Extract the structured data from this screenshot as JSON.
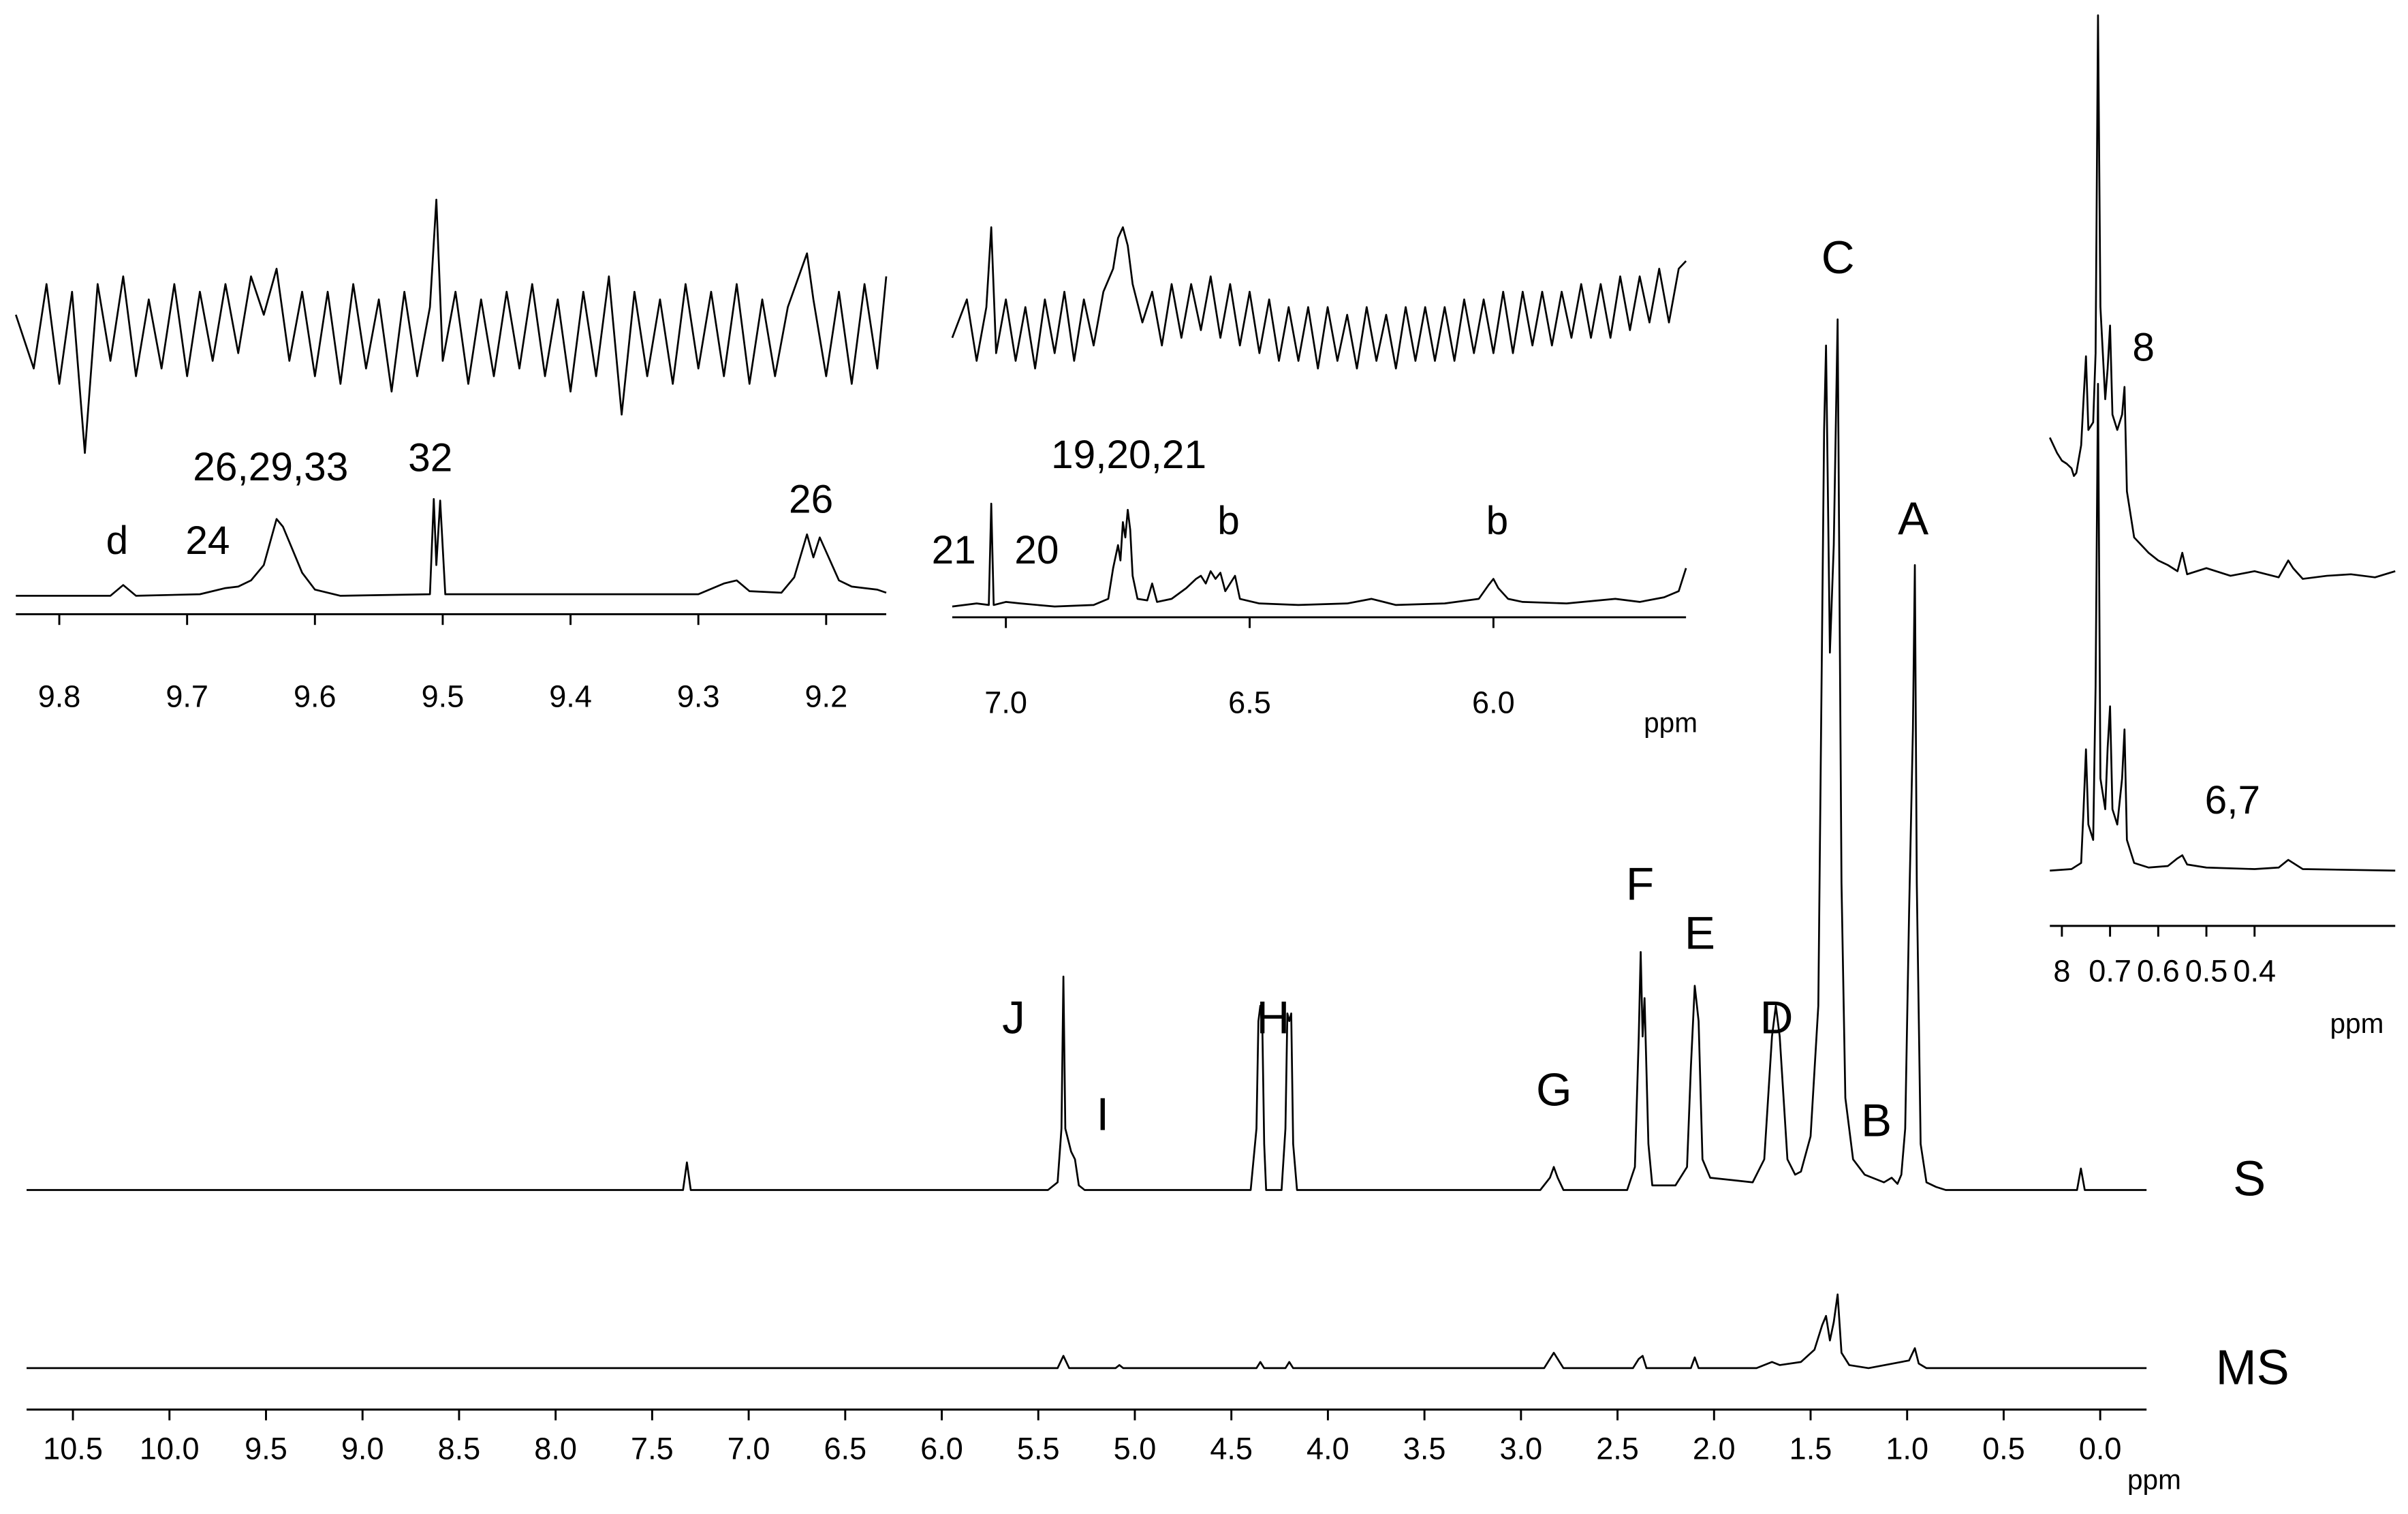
{
  "chart_data": [
    {
      "type": "line",
      "xlabel": "ppm",
      "xlim": [
        10.74,
        -0.24
      ],
      "xticks": [
        10.5,
        {
          "value": 10,
          "label": "10.0"
        },
        9.5,
        {
          "value": 9,
          "label": "9.0"
        },
        8.5,
        {
          "value": 8,
          "label": "8.0"
        },
        7.5,
        {
          "value": 7,
          "label": "7.0"
        },
        6.5,
        {
          "value": 6,
          "label": "6.0"
        },
        5.5,
        {
          "value": 5,
          "label": "5.0"
        },
        4.5,
        {
          "value": 4,
          "label": "4.0"
        },
        3.5,
        {
          "value": 3,
          "label": "3.0"
        },
        2.5,
        {
          "value": 2,
          "label": "2.0"
        },
        1.5,
        {
          "value": 1,
          "label": "1.0"
        },
        0.5,
        {
          "value": 0,
          "label": "0.0"
        }
      ],
      "annotations": [
        "J",
        "I",
        "H",
        "G",
        "F",
        "E",
        "D",
        "C",
        "B",
        "A"
      ],
      "series": [
        {
          "name": "S",
          "color": "#000000",
          "x": [
            10.74,
            7.34,
            7.32,
            7.3,
            5.45,
            5.4,
            5.38,
            5.37,
            5.36,
            5.33,
            5.31,
            5.29,
            5.26,
            4.4,
            4.37,
            4.36,
            4.35,
            4.34,
            4.33,
            4.32,
            4.24,
            4.22,
            4.21,
            4.2,
            4.19,
            4.18,
            4.16,
            2.9,
            2.85,
            2.83,
            2.81,
            2.78,
            2.45,
            2.41,
            2.39,
            2.38,
            2.37,
            2.36,
            2.34,
            2.32,
            2.2,
            2.14,
            2.12,
            2.1,
            2.08,
            2.06,
            2.02,
            1.8,
            1.74,
            1.7,
            1.68,
            1.66,
            1.62,
            1.58,
            1.55,
            1.5,
            1.46,
            1.43,
            1.42,
            1.4,
            1.38,
            1.36,
            1.34,
            1.32,
            1.28,
            1.22,
            1.12,
            1.08,
            1.05,
            1.03,
            1.01,
            0.99,
            0.97,
            0.96,
            0.95,
            0.93,
            0.9,
            0.85,
            0.8,
            0.12,
            0.1,
            0.08,
            -0.24
          ],
          "values": [
            0,
            0,
            18,
            0,
            0,
            5,
            40,
            139,
            40,
            25,
            20,
            3,
            0,
            0,
            40,
            110,
            120,
            110,
            30,
            0,
            0,
            40,
            115,
            110,
            115,
            30,
            0,
            0,
            8,
            15,
            8,
            0,
            0,
            15,
            100,
            155,
            100,
            125,
            30,
            3,
            3,
            15,
            80,
            133,
            110,
            20,
            8,
            5,
            20,
            100,
            120,
            100,
            20,
            10,
            12,
            35,
            120,
            495,
            550,
            350,
            420,
            567,
            200,
            60,
            20,
            10,
            5,
            8,
            4,
            10,
            40,
            180,
            300,
            407,
            200,
            30,
            5,
            2,
            0,
            0,
            14,
            0,
            0
          ]
        },
        {
          "name": "MS",
          "color": "#000000",
          "x": [
            10.74,
            7.32,
            5.4,
            5.37,
            5.34,
            5.1,
            5.08,
            5.06,
            4.37,
            4.35,
            4.33,
            4.22,
            4.2,
            4.18,
            2.88,
            2.85,
            2.83,
            2.81,
            2.78,
            2.42,
            2.39,
            2.37,
            2.35,
            2.12,
            2.1,
            2.08,
            1.78,
            1.7,
            1.66,
            1.55,
            1.48,
            1.44,
            1.42,
            1.4,
            1.38,
            1.36,
            1.34,
            1.3,
            1.2,
            0.99,
            0.96,
            0.94,
            0.9,
            -0.24
          ],
          "values": [
            0,
            0,
            0,
            8,
            0,
            0,
            2,
            0,
            0,
            4,
            0,
            0,
            4,
            0,
            0,
            6,
            10,
            6,
            0,
            0,
            6,
            8,
            0,
            0,
            7,
            0,
            0,
            4,
            2,
            4,
            12,
            28,
            34,
            18,
            30,
            48,
            10,
            2,
            0,
            5,
            13,
            3,
            0,
            0
          ]
        }
      ]
    },
    {
      "type": "line",
      "xlim": [
        9.834,
        9.153
      ],
      "xticks": [
        9.8,
        9.7,
        9.6,
        9.5,
        9.4,
        9.3,
        9.2
      ],
      "annotations": [
        "d",
        "24",
        "26,29,33",
        "32",
        "26"
      ],
      "series": [
        {
          "color": "#000000",
          "x": [
            9.834,
            9.82,
            9.81,
            9.8,
            9.79,
            9.78,
            9.77,
            9.76,
            9.75,
            9.74,
            9.73,
            9.72,
            9.71,
            9.7,
            9.69,
            9.68,
            9.67,
            9.66,
            9.65,
            9.64,
            9.63,
            9.62,
            9.61,
            9.6,
            9.59,
            9.58,
            9.57,
            9.56,
            9.55,
            9.54,
            9.53,
            9.52,
            9.51,
            9.505,
            9.5,
            9.49,
            9.48,
            9.47,
            9.46,
            9.45,
            9.44,
            9.43,
            9.42,
            9.41,
            9.4,
            9.39,
            9.38,
            9.37,
            9.36,
            9.35,
            9.34,
            9.33,
            9.32,
            9.31,
            9.3,
            9.29,
            9.28,
            9.27,
            9.26,
            9.25,
            9.24,
            9.23,
            9.215,
            9.21,
            9.2,
            9.19,
            9.18,
            9.17,
            9.16,
            9.153
          ],
          "values": [
            10,
            -25,
            30,
            -35,
            25,
            -80,
            30,
            -20,
            35,
            -30,
            20,
            -25,
            30,
            -30,
            25,
            -20,
            30,
            -15,
            35,
            10,
            40,
            -20,
            25,
            -30,
            25,
            -35,
            30,
            -25,
            20,
            -40,
            25,
            -30,
            15,
            85,
            -20,
            25,
            -35,
            20,
            -30,
            25,
            -25,
            30,
            -30,
            20,
            -40,
            25,
            -30,
            35,
            -55,
            25,
            -30,
            20,
            -35,
            30,
            -25,
            25,
            -30,
            30,
            -35,
            20,
            -30,
            15,
            50,
            20,
            -30,
            25,
            -35,
            30,
            -25,
            35
          ]
        },
        {
          "color": "#000000",
          "x": [
            9.834,
            9.76,
            9.75,
            9.74,
            9.69,
            9.67,
            9.66,
            9.65,
            9.64,
            9.635,
            9.63,
            9.625,
            9.62,
            9.61,
            9.6,
            9.58,
            9.51,
            9.507,
            9.505,
            9.502,
            9.498,
            9.3,
            9.28,
            9.27,
            9.26,
            9.235,
            9.225,
            9.215,
            9.21,
            9.205,
            9.19,
            9.18,
            9.16,
            9.153
          ],
          "values": [
            0,
            0,
            7,
            0,
            1,
            5,
            6,
            10,
            20,
            35,
            50,
            45,
            35,
            15,
            4,
            0,
            1,
            63,
            20,
            62,
            1,
            1,
            8,
            10,
            3,
            2,
            12,
            40,
            25,
            38,
            10,
            6,
            4,
            2
          ]
        }
      ]
    },
    {
      "type": "line",
      "xlabel": "ppm",
      "xlim": [
        7.11,
        5.605
      ],
      "xticks": [
        {
          "value": 7,
          "label": "7.0"
        },
        6.5,
        {
          "value": 6,
          "label": "6.0"
        }
      ],
      "annotations": [
        "19,20,21",
        "21",
        "20",
        "b",
        "b"
      ],
      "series": [
        {
          "color": "#000000",
          "x": [
            7.11,
            7.08,
            7.06,
            7.04,
            7.03,
            7.02,
            7.0,
            6.98,
            6.96,
            6.94,
            6.92,
            6.9,
            6.88,
            6.86,
            6.84,
            6.82,
            6.8,
            6.78,
            6.77,
            6.76,
            6.75,
            6.74,
            6.72,
            6.7,
            6.68,
            6.66,
            6.64,
            6.62,
            6.6,
            6.58,
            6.56,
            6.54,
            6.52,
            6.5,
            6.48,
            6.46,
            6.44,
            6.42,
            6.4,
            6.38,
            6.36,
            6.34,
            6.32,
            6.3,
            6.28,
            6.26,
            6.24,
            6.22,
            6.2,
            6.18,
            6.16,
            6.14,
            6.12,
            6.1,
            6.08,
            6.06,
            6.04,
            6.02,
            6.0,
            5.98,
            5.96,
            5.94,
            5.92,
            5.9,
            5.88,
            5.86,
            5.84,
            5.82,
            5.8,
            5.78,
            5.76,
            5.74,
            5.72,
            5.7,
            5.68,
            5.66,
            5.64,
            5.62,
            5.605
          ],
          "values": [
            -5,
            20,
            -20,
            15,
            67,
            -15,
            20,
            -20,
            15,
            -25,
            20,
            -15,
            25,
            -20,
            20,
            -10,
            25,
            40,
            60,
            67,
            55,
            30,
            5,
            25,
            -10,
            30,
            -5,
            30,
            0,
            35,
            -5,
            30,
            -10,
            25,
            -15,
            20,
            -20,
            15,
            -20,
            15,
            -25,
            15,
            -20,
            10,
            -25,
            15,
            -20,
            10,
            -25,
            15,
            -20,
            15,
            -20,
            15,
            -20,
            20,
            -15,
            20,
            -15,
            25,
            -15,
            25,
            -10,
            25,
            -10,
            25,
            -5,
            30,
            -5,
            30,
            -5,
            35,
            0,
            35,
            5,
            40,
            5,
            40,
            45
          ]
        },
        {
          "color": "#000000",
          "x": [
            7.11,
            7.06,
            7.035,
            7.03,
            7.025,
            7.0,
            6.97,
            6.9,
            6.82,
            6.79,
            6.78,
            6.77,
            6.765,
            6.76,
            6.755,
            6.75,
            6.745,
            6.74,
            6.73,
            6.71,
            6.7,
            6.69,
            6.66,
            6.63,
            6.61,
            6.6,
            6.59,
            6.58,
            6.57,
            6.56,
            6.55,
            6.53,
            6.52,
            6.48,
            6.4,
            6.3,
            6.25,
            6.2,
            6.1,
            6.03,
            6.01,
            6.0,
            5.99,
            5.97,
            5.94,
            5.85,
            5.75,
            5.7,
            5.65,
            5.62,
            5.605
          ],
          "values": [
            0,
            2,
            1,
            67,
            1,
            3,
            2,
            0,
            1,
            5,
            25,
            40,
            30,
            55,
            45,
            63,
            50,
            20,
            5,
            4,
            15,
            3,
            5,
            12,
            18,
            20,
            15,
            23,
            18,
            22,
            10,
            20,
            5,
            2,
            1,
            2,
            5,
            1,
            2,
            5,
            14,
            18,
            12,
            5,
            3,
            2,
            5,
            3,
            6,
            10,
            25
          ]
        }
      ]
    },
    {
      "type": "line",
      "xlabel": "ppm",
      "xlim": [
        0.825,
        0.108
      ],
      "xticks": [
        {
          "value": 0.8,
          "label": "8"
        },
        0.7,
        0.6,
        0.5,
        0.4
      ],
      "annotations": [
        "8",
        "6,7"
      ],
      "series": [
        {
          "color": "#000000",
          "x": [
            0.825,
            0.81,
            0.8,
            0.79,
            0.78,
            0.775,
            0.77,
            0.76,
            0.755,
            0.75,
            0.745,
            0.735,
            0.73,
            0.725,
            0.72,
            0.71,
            0.705,
            0.7,
            0.695,
            0.685,
            0.675,
            0.67,
            0.665,
            0.65,
            0.62,
            0.6,
            0.58,
            0.56,
            0.55,
            0.54,
            0.5,
            0.45,
            0.4,
            0.35,
            0.33,
            0.32,
            0.3,
            0.25,
            0.2,
            0.15,
            0.108
          ],
          "values": [
            95,
            85,
            80,
            78,
            75,
            70,
            72,
            90,
            120,
            148,
            100,
            105,
            150,
            370,
            180,
            120,
            140,
            168,
            110,
            100,
            110,
            128,
            60,
            30,
            20,
            15,
            12,
            8,
            20,
            6,
            10,
            5,
            8,
            4,
            15,
            10,
            3,
            5,
            6,
            4,
            8
          ]
        },
        {
          "color": "#000000",
          "x": [
            0.825,
            0.78,
            0.76,
            0.755,
            0.75,
            0.745,
            0.735,
            0.73,
            0.725,
            0.72,
            0.71,
            0.705,
            0.7,
            0.695,
            0.685,
            0.675,
            0.67,
            0.665,
            0.65,
            0.62,
            0.58,
            0.56,
            0.55,
            0.54,
            0.5,
            0.4,
            0.35,
            0.33,
            0.32,
            0.3,
            0.108
          ],
          "values": [
            0,
            1,
            5,
            40,
            79,
            30,
            20,
            120,
            317,
            60,
            40,
            80,
            107,
            40,
            30,
            60,
            92,
            20,
            5,
            2,
            3,
            8,
            10,
            4,
            2,
            1,
            2,
            7,
            5,
            1,
            0
          ]
        }
      ]
    }
  ]
}
